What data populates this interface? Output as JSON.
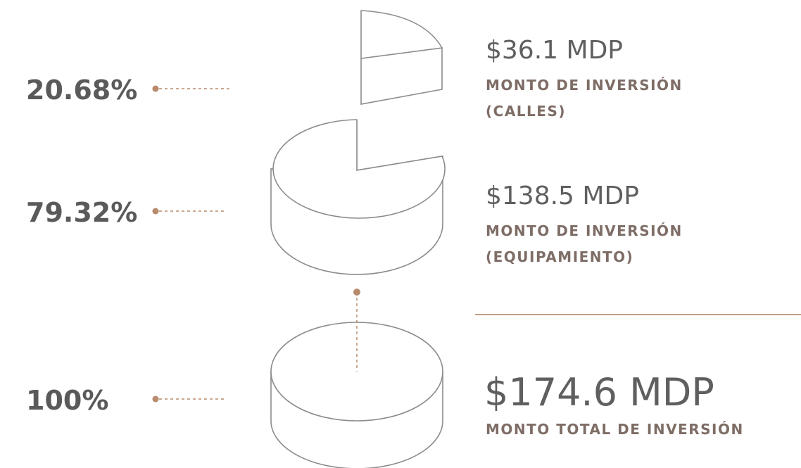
{
  "rows": [
    {
      "percent": "20.68%",
      "amount": "$36.1 MDP",
      "label": "MONTO DE INVERSIÓN",
      "sublabel": "(CALLES)"
    },
    {
      "percent": "79.32%",
      "amount": "$138.5 MDP",
      "label": "MONTO DE INVERSIÓN",
      "sublabel": "(EQUIPAMIENTO)"
    }
  ],
  "total": {
    "percent": "100%",
    "amount": "$174.6 MDP",
    "label": "MONTO TOTAL DE INVERSIÓN"
  }
}
